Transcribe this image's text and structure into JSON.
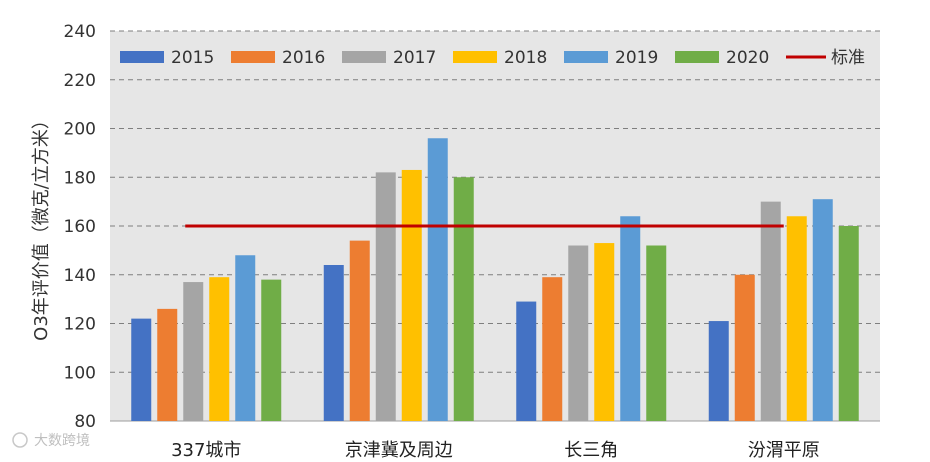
{
  "chart_data": {
    "type": "bar",
    "ylabel": "O3年评价值（微克/立方米）",
    "ylim": [
      80,
      240
    ],
    "yticks": [
      80,
      100,
      120,
      140,
      160,
      180,
      200,
      220,
      240
    ],
    "grid": true,
    "legend_position": "top",
    "categories": [
      "337城市",
      "京津冀及周边",
      "长三角",
      "汾渭平原"
    ],
    "series": [
      {
        "name": "2015",
        "color": "#4472C4",
        "values": [
          122,
          144,
          129,
          121
        ]
      },
      {
        "name": "2016",
        "color": "#ED7D31",
        "values": [
          126,
          154,
          139,
          140
        ]
      },
      {
        "name": "2017",
        "color": "#A5A5A5",
        "values": [
          137,
          182,
          152,
          170
        ]
      },
      {
        "name": "2018",
        "color": "#FFC000",
        "values": [
          139,
          183,
          153,
          164
        ]
      },
      {
        "name": "2019",
        "color": "#5B9BD5",
        "values": [
          148,
          196,
          164,
          171
        ]
      },
      {
        "name": "2020",
        "color": "#70AD47",
        "values": [
          138,
          180,
          152,
          160
        ]
      }
    ],
    "reference_line": {
      "name": "标准",
      "value": 160,
      "color": "#C00000"
    }
  },
  "watermark": "大数跨境"
}
